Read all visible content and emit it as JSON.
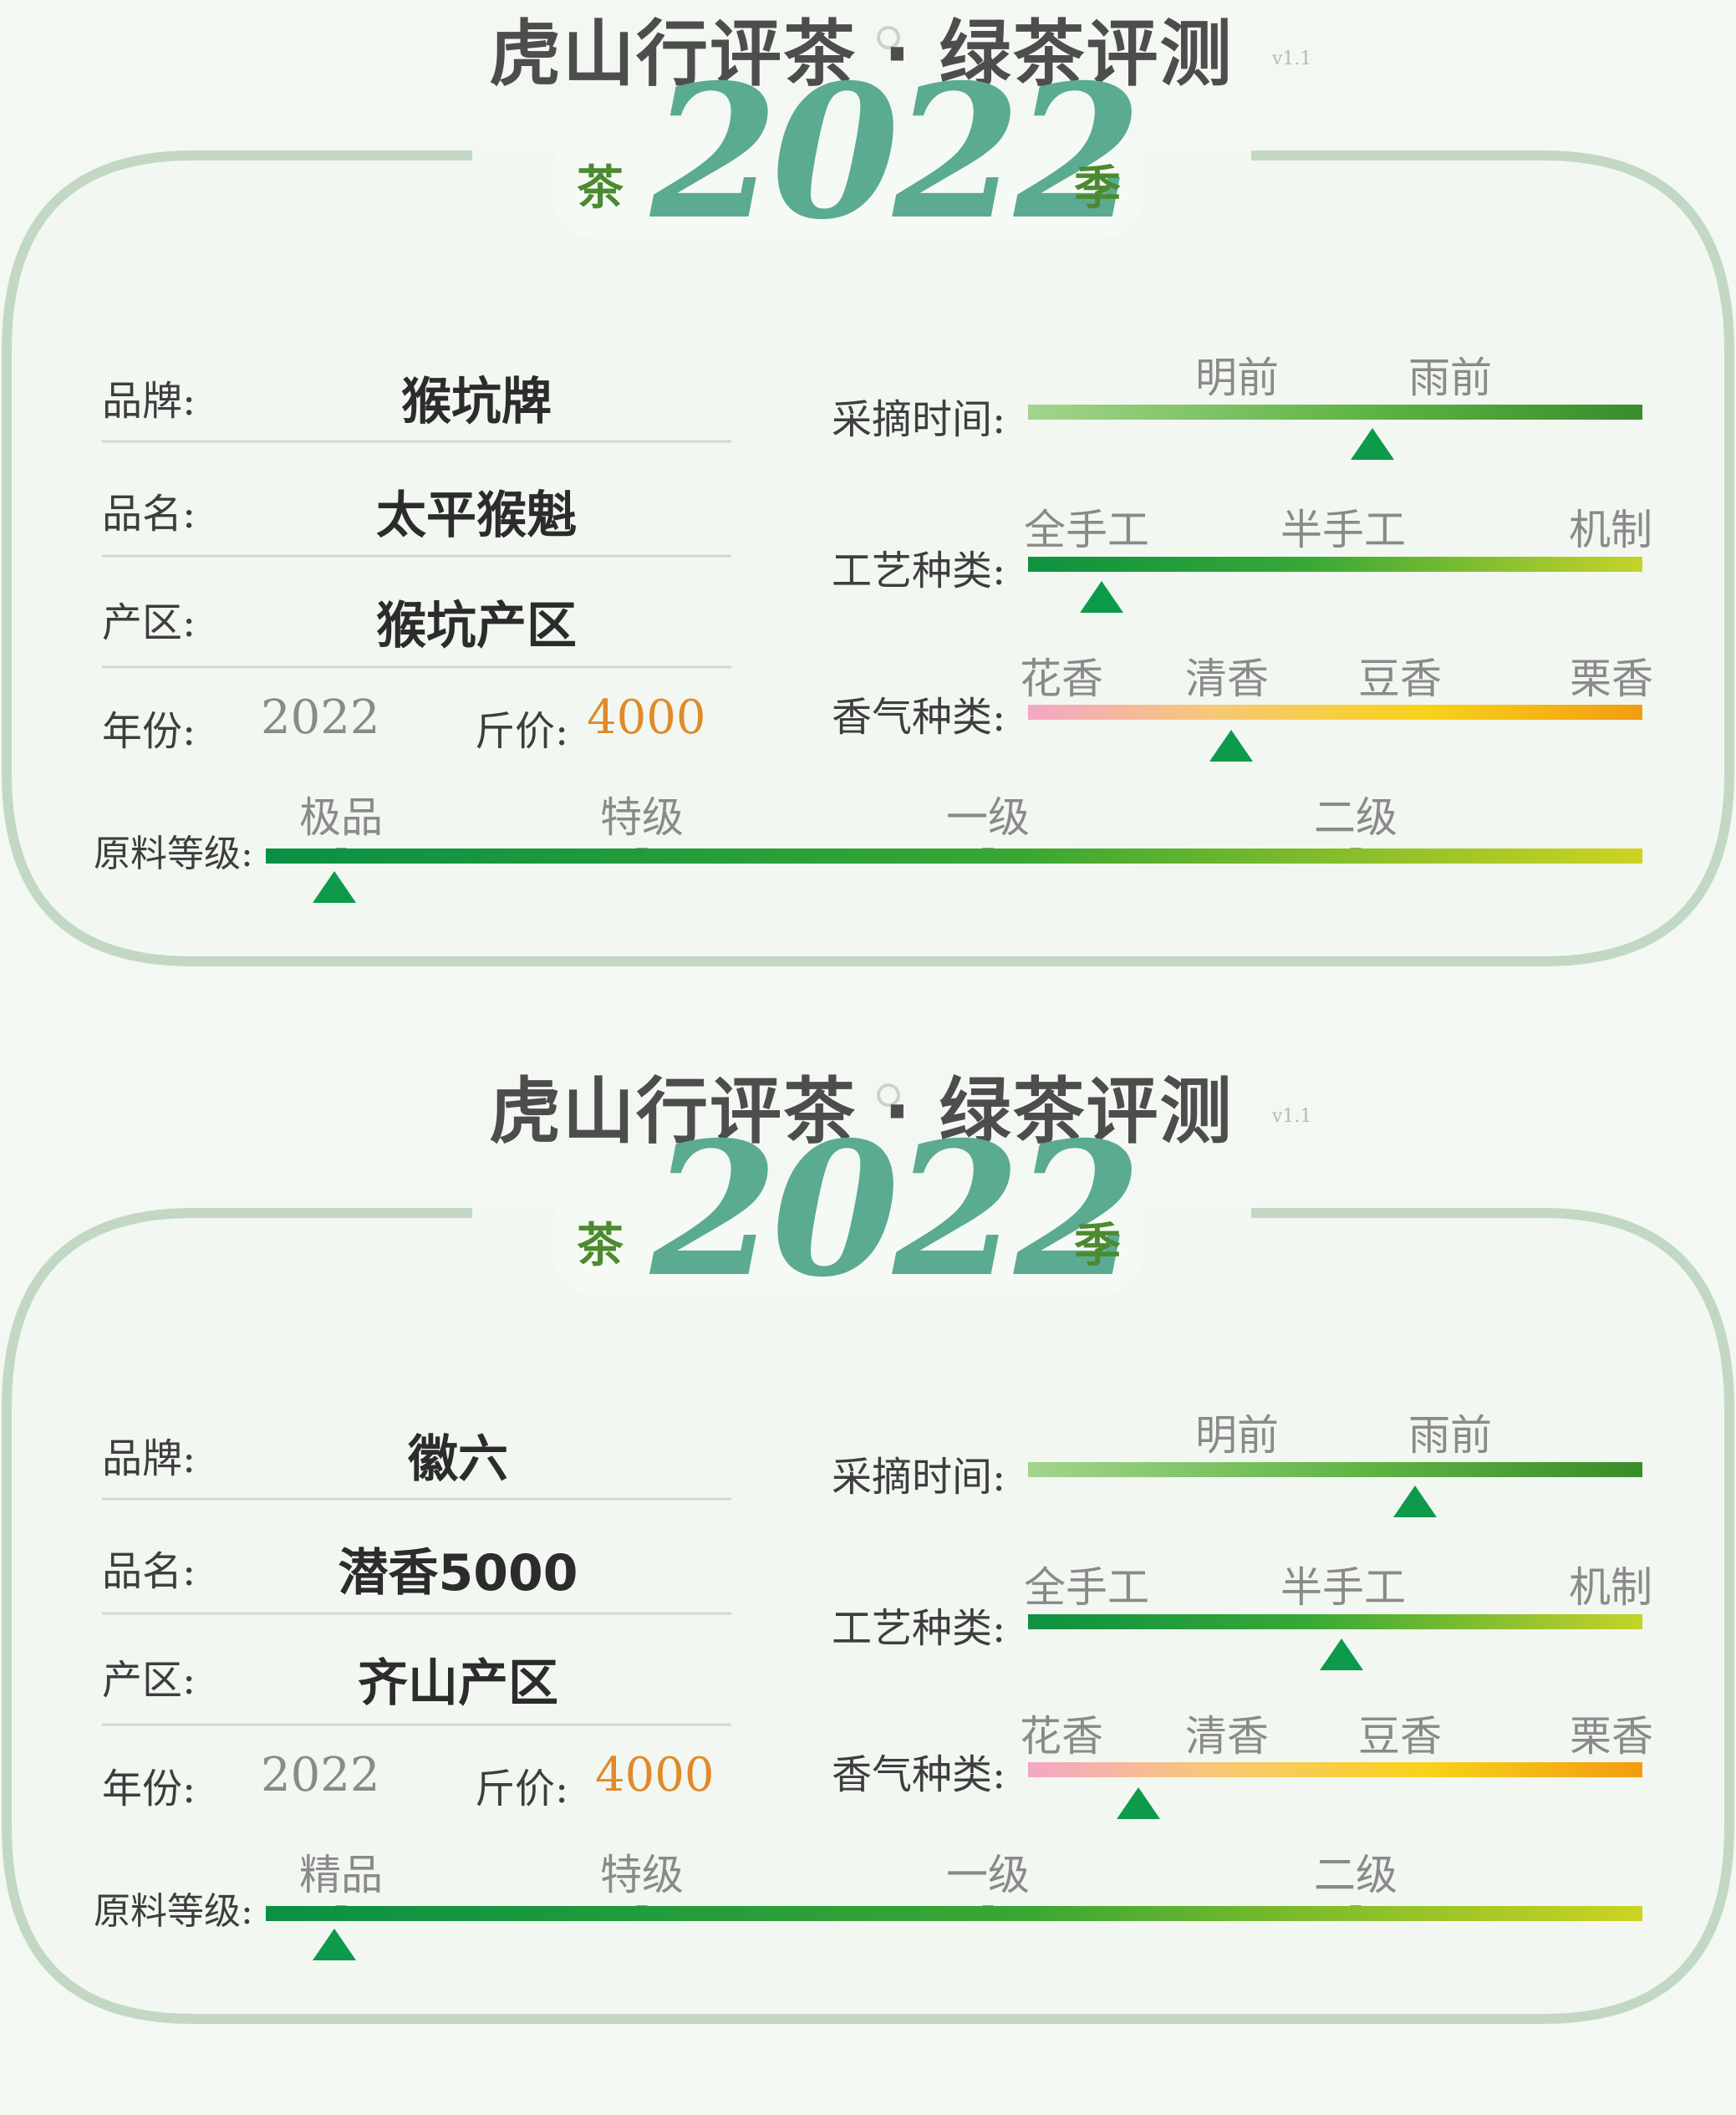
{
  "cards": [
    {
      "header": {
        "title": "虎山行评茶 · 绿茶评测",
        "version": "v1.1",
        "season_left": "茶",
        "season_year": "2022",
        "season_right": "季"
      },
      "info": {
        "brand_label": "品牌:",
        "brand_value": "猴坑牌",
        "name_label": "品名:",
        "name_value": "太平猴魁",
        "region_label": "产区:",
        "region_value": "猴坑产区",
        "year_label": "年份:",
        "year_value": "2022",
        "price_label": "斤价:",
        "price_value": "4000"
      },
      "scales": {
        "picking": {
          "label": "采摘时间:",
          "ticks": [
            "明前",
            "雨前"
          ],
          "marker": 0.56
        },
        "craft": {
          "label": "工艺种类:",
          "ticks": [
            "全手工",
            "半手工",
            "机制"
          ],
          "marker": 0.12
        },
        "aroma": {
          "label": "香气种类:",
          "ticks": [
            "花香",
            "清香",
            "豆香",
            "栗香"
          ],
          "marker": 0.33
        },
        "grade": {
          "label": "原料等级:",
          "ticks": [
            "极品",
            "特级",
            "一级",
            "二级"
          ],
          "marker": 0.05
        }
      }
    },
    {
      "header": {
        "title": "虎山行评茶 · 绿茶评测",
        "version": "v1.1",
        "season_left": "茶",
        "season_year": "2022",
        "season_right": "季"
      },
      "info": {
        "brand_label": "品牌:",
        "brand_value": "徽六",
        "name_label": "品名:",
        "name_value": "潜香5000",
        "region_label": "产区:",
        "region_value": "齐山产区",
        "year_label": "年份:",
        "year_value": "2022",
        "price_label": "斤价:",
        "price_value": "4000"
      },
      "scales": {
        "picking": {
          "label": "采摘时间:",
          "ticks": [
            "明前",
            "雨前"
          ],
          "marker": 0.63
        },
        "craft": {
          "label": "工艺种类:",
          "ticks": [
            "全手工",
            "半手工",
            "机制"
          ],
          "marker": 0.51
        },
        "aroma": {
          "label": "香气种类:",
          "ticks": [
            "花香",
            "清香",
            "豆香",
            "栗香"
          ],
          "marker": 0.18
        },
        "grade": {
          "label": "原料等级:",
          "ticks": [
            "精品",
            "特级",
            "一级",
            "二级"
          ],
          "marker": 0.05
        }
      }
    }
  ],
  "colors": {
    "frame": "#c3d8c4",
    "accent_green": "#5aab92",
    "marker_green": "#0d9a4a",
    "price_orange": "#e08a2a"
  }
}
